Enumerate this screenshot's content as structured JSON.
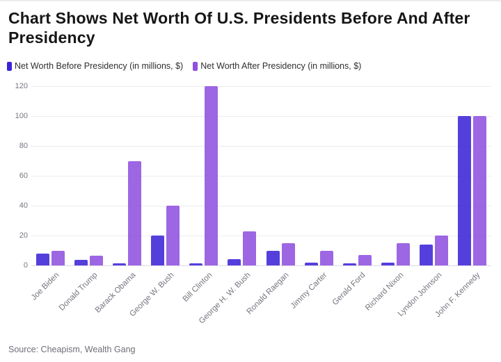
{
  "title": "Chart Shows Net Worth Of U.S. Presidents Before And After Presidency",
  "source": "Source: Cheapism, Wealth Gang",
  "colors": {
    "before_series": "#3b23d8",
    "after_series": "#8f4fdf",
    "gridline": "#ececf2",
    "axis_text": "#76757f",
    "title_text": "#161616"
  },
  "chart_data": {
    "type": "bar",
    "title": "Chart Shows Net Worth Of U.S. Presidents Before And After Presidency",
    "categories": [
      "Joe Biden",
      "Donald Trump",
      "Barack Obama",
      "George W. Bush",
      "Bill Clinton",
      "George H. W. Bush",
      "Ronald Raegan",
      "Jimmy Carter",
      "Gerald Ford",
      "Richard Nixon",
      "Lyndon Johnson",
      "John F. Kennedy"
    ],
    "series": [
      {
        "name": "Net Worth Before Presidency (in millions, $)",
        "color": "#3b23d8",
        "values": [
          8,
          3.5,
          1.3,
          20,
          1.3,
          4,
          10,
          2,
          1.3,
          2,
          14,
          100
        ]
      },
      {
        "name": "Net Worth After Presidency (in millions, $)",
        "color": "#8f4fdf",
        "values": [
          10,
          6.5,
          70,
          40,
          120,
          23,
          15,
          10,
          7,
          15,
          20,
          100
        ]
      }
    ],
    "xlabel": "",
    "ylabel": "",
    "ylim": [
      0,
      120
    ],
    "yticks": [
      0,
      20,
      40,
      60,
      80,
      100,
      120
    ],
    "grid": true,
    "legend_position": "top",
    "x_tick_rotation": -45
  }
}
